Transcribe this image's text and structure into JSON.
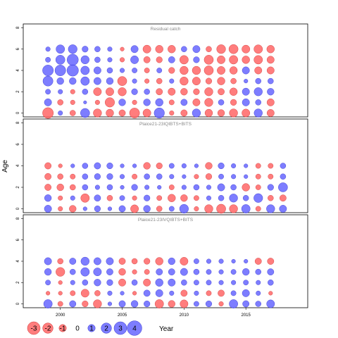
{
  "chart_data": {
    "type": "scatter",
    "subtype": "bubble",
    "ylabel": "Age",
    "xlabel": "Year",
    "xlim": [
      1997,
      2020
    ],
    "x_ticks": [
      2000,
      2005,
      2010,
      2015
    ],
    "ylim": [
      -0.5,
      8.5
    ],
    "y_ticks": [
      0,
      2,
      4,
      6,
      8
    ],
    "grid": false,
    "colors": {
      "positive": "#6666ff",
      "negative": "#ff6666",
      "positive_stroke": "#3333cc",
      "negative_stroke": "#cc3333"
    },
    "legend": {
      "placement": "bottom-left",
      "values": [
        -3,
        -2,
        -1,
        0,
        1,
        2,
        3,
        4
      ],
      "labels": [
        "-3",
        "-2",
        "-1",
        "0",
        "1",
        "2",
        "3",
        "4"
      ]
    },
    "panels": [
      {
        "title": "Residual catch",
        "years": [
          1999,
          2000,
          2001,
          2002,
          2003,
          2004,
          2005,
          2006,
          2007,
          2008,
          2009,
          2010,
          2011,
          2012,
          2013,
          2014,
          2015,
          2016,
          2017
        ],
        "ages": [
          0,
          1,
          2,
          3,
          4,
          5,
          6,
          7
        ],
        "residuals": [
          [
            -2.2,
            0.4,
            -0.6,
            1.6,
            -1.3,
            -1.1,
            -0.8,
            -1.9,
            -1.2,
            2.0,
            -0.4,
            -0.8,
            1.3,
            -1.1,
            -0.9,
            -1.3,
            -1.2,
            1.3,
            -1.0
          ],
          [
            1.0,
            -0.6,
            -0.4,
            0.2,
            -0.4,
            -1.7,
            0.9,
            -0.4,
            0.9,
            1.1,
            -0.5,
            0.8,
            -1.0,
            -1.3,
            0.6,
            -0.7,
            1.0,
            0.6,
            -1.0
          ],
          [
            0.5,
            0.4,
            -0.4,
            0.6,
            -1.2,
            -1.2,
            -1.3,
            0.7,
            0.6,
            -0.8,
            -1.0,
            -0.9,
            -0.7,
            -1.3,
            -0.8,
            -1.1,
            1.0,
            1.3,
            0.9
          ],
          [
            1.9,
            0.9,
            0.9,
            1.4,
            1.0,
            0.9,
            -1.6,
            0.4,
            -0.4,
            -0.6,
            0.4,
            -1.3,
            -1.2,
            -0.7,
            -1.1,
            -0.6,
            0.3,
            0.6,
            0.6
          ],
          [
            2.2,
            2.2,
            2.5,
            1.4,
            1.0,
            0.6,
            0.4,
            0.5,
            -0.5,
            0.5,
            -0.7,
            -1.3,
            -1.3,
            -1.6,
            -1.2,
            -1.1,
            1.0,
            -1.0,
            -1.0
          ],
          [
            0.5,
            1.6,
            2.4,
            1.3,
            0.6,
            0.4,
            -0.4,
            1.2,
            -0.8,
            -0.7,
            0.8,
            -1.4,
            0.7,
            -1.6,
            -1.2,
            -1.4,
            -1.1,
            -1.4,
            -1.0
          ],
          [
            0.4,
            1.4,
            1.5,
            0.7,
            0.6,
            0.4,
            -0.3,
            1.0,
            -1.2,
            -1.1,
            -1.1,
            0.6,
            1.0,
            -0.6,
            -1.5,
            -1.6,
            -1.2,
            -1.4,
            -1.1
          ],
          [
            0,
            0,
            0,
            0,
            0,
            0,
            0,
            0,
            0,
            0,
            0,
            0,
            0,
            0,
            0,
            0,
            0,
            0,
            0
          ]
        ]
      },
      {
        "title": "Plaice21-23IQIBTS+BITS",
        "years": [
          1999,
          2000,
          2001,
          2002,
          2003,
          2004,
          2005,
          2006,
          2007,
          2008,
          2009,
          2010,
          2011,
          2012,
          2013,
          2014,
          2015,
          2016,
          2017,
          2018
        ],
        "ages": [
          0,
          1,
          2,
          3,
          4,
          5,
          6,
          7
        ],
        "residuals": [
          [
            1.0,
            -0.4,
            -0.9,
            0.3,
            0.7,
            0.3,
            0.8,
            -1.2,
            0.9,
            -0.6,
            0.5,
            1.5,
            -0.4,
            -1.3,
            -1.6,
            -1.3,
            1.4,
            -0.5,
            1.3,
            1.0
          ],
          [
            0.9,
            -0.4,
            0.4,
            -1.4,
            0.8,
            -0.6,
            0.5,
            -0.4,
            0.7,
            -0.5,
            -1.1,
            -0.9,
            -0.5,
            0.4,
            0.6,
            1.3,
            0.6,
            1.5,
            -0.6,
            -0.8
          ],
          [
            -0.8,
            -0.9,
            -0.6,
            0.6,
            0.4,
            0.6,
            0.3,
            0.7,
            0.4,
            0.3,
            -0.5,
            0.4,
            0.6,
            0.4,
            1.0,
            0.6,
            -1.1,
            -0.5,
            0.7,
            1.6
          ],
          [
            -0.8,
            -0.6,
            -0.5,
            0.6,
            0.7,
            0.7,
            0.4,
            -0.5,
            0.6,
            0.6,
            0.4,
            0.3,
            -0.4,
            -0.7,
            0.5,
            0.4,
            0.3,
            -0.5,
            -0.5,
            0.6
          ],
          [
            -0.8,
            -0.3,
            0.3,
            0.6,
            0.8,
            0.7,
            0.3,
            0.3,
            -0.9,
            -0.7,
            0.5,
            0.4,
            0.3,
            -0.9,
            0.7,
            0.4,
            0.3,
            -0.5,
            -0.5,
            0.6
          ],
          [
            0,
            0,
            0,
            0,
            0,
            0,
            0,
            0,
            0,
            0,
            0,
            0,
            0,
            0,
            0,
            0,
            0,
            0,
            0,
            0
          ],
          [
            0,
            0,
            0,
            0,
            0,
            0,
            0,
            0,
            0,
            0,
            0,
            0,
            0,
            0,
            0,
            0,
            0,
            0,
            0,
            0
          ],
          [
            0,
            0,
            0,
            0,
            0,
            0,
            0,
            0,
            0,
            0,
            0,
            0,
            0,
            0,
            0,
            0,
            0,
            0,
            0,
            0
          ]
        ]
      },
      {
        "title": "Plaice21-23IVQIBTS+BITS",
        "years": [
          1999,
          2000,
          2001,
          2002,
          2003,
          2004,
          2005,
          2006,
          2007,
          2008,
          2009,
          2010,
          2011,
          2012,
          2013,
          2014,
          2015,
          2016,
          2017
        ],
        "ages": [
          0,
          1,
          2,
          3,
          4,
          5,
          6,
          7
        ],
        "residuals": [
          [
            1.4,
            -0.5,
            0.8,
            -0.7,
            -1.3,
            0.3,
            0.8,
            0.9,
            0.7,
            -1.4,
            -0.9,
            -1.2,
            0.5,
            0.7,
            -0.4,
            1.4,
            0.8,
            0.6,
            1.2
          ],
          [
            -0.3,
            -0.3,
            -0.5,
            -1.2,
            -0.6,
            0.4,
            0.3,
            -0.3,
            0.8,
            1.0,
            0.4,
            -0.8,
            0.4,
            -0.5,
            -0.8,
            0.5,
            1.0,
            0.4,
            -0.3
          ],
          [
            0.5,
            -0.3,
            0.4,
            0.6,
            0.9,
            0.7,
            -1.0,
            0.6,
            -1.0,
            1.1,
            1.0,
            0.6,
            0.5,
            0.5,
            0.4,
            0.4,
            0.5,
            0.4,
            0.6
          ],
          [
            0.9,
            -1.5,
            0.6,
            1.4,
            1.2,
            0.8,
            -0.9,
            -0.4,
            -0.5,
            0.8,
            0.8,
            1.0,
            0.6,
            0.5,
            0.4,
            0.5,
            0.9,
            0.6,
            0.8
          ],
          [
            1.0,
            -0.6,
            0.8,
            1.3,
            1.0,
            1.0,
            -0.8,
            -0.6,
            -0.7,
            -1.1,
            0.9,
            -1.2,
            0.5,
            0.4,
            0.4,
            0.3,
            0.3,
            -0.8,
            -0.8
          ],
          [
            0,
            0,
            0,
            0,
            0,
            0,
            0,
            0,
            0,
            0,
            0,
            0,
            0,
            0,
            0,
            0,
            0,
            0,
            0
          ],
          [
            0,
            0,
            0,
            0,
            0,
            0,
            0,
            0,
            0,
            0,
            0,
            0,
            0,
            0,
            0,
            0,
            0,
            0,
            0
          ],
          [
            0,
            0,
            0,
            0,
            0,
            0,
            0,
            0,
            0,
            0,
            0,
            0,
            0,
            0,
            0,
            0,
            0,
            0,
            0
          ]
        ]
      }
    ]
  }
}
